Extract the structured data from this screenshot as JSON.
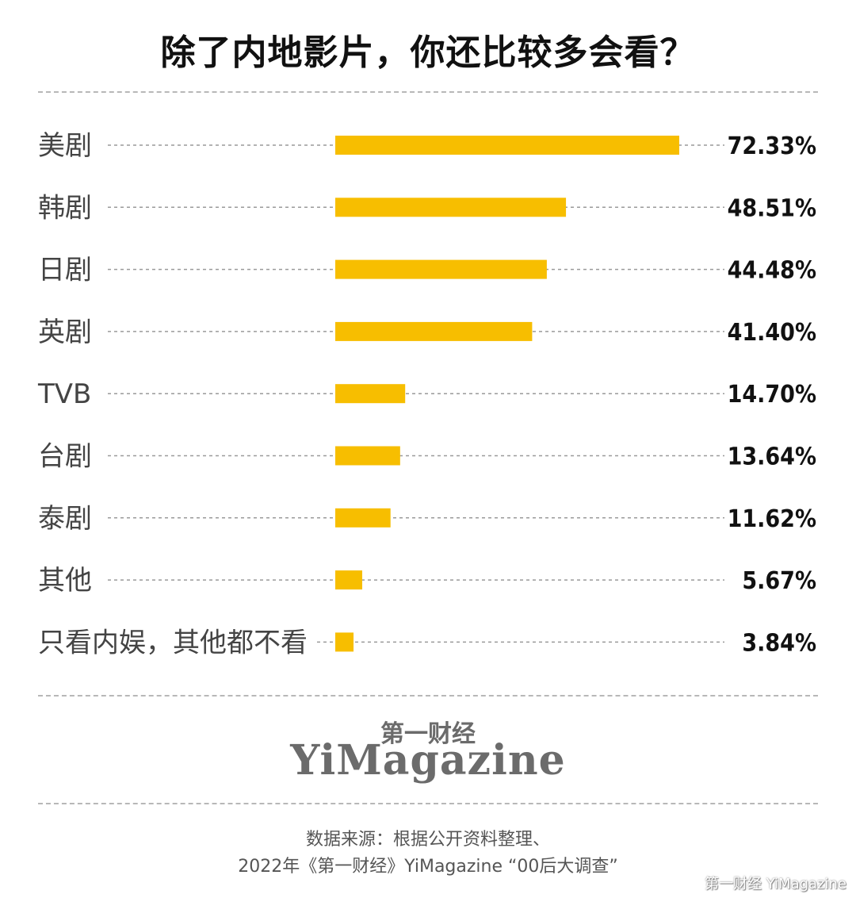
{
  "title": "除了内地影片，你还比较多会看？",
  "chart_data": {
    "type": "bar",
    "orientation": "horizontal",
    "categories": [
      "美剧",
      "韩剧",
      "日剧",
      "英剧",
      "TVB",
      "台剧",
      "泰剧",
      "其他",
      "只看内娱，其他都不看"
    ],
    "values": [
      72.33,
      48.51,
      44.48,
      41.4,
      14.7,
      13.64,
      11.62,
      5.67,
      3.84
    ],
    "value_labels": [
      "72.33%",
      "48.51%",
      "44.48%",
      "41.40%",
      "14.70%",
      "13.64%",
      "11.62%",
      "5.67%",
      "3.84%"
    ],
    "unit": "%",
    "xlim": [
      0,
      100
    ],
    "bar_color": "#F7BE00",
    "grid": "dashed guide lines per row",
    "legend": "none"
  },
  "logo": {
    "cn": "第一财经",
    "en": "YiMagazine"
  },
  "source": {
    "line1": "数据来源：根据公开资料整理、",
    "line2": "2022年《第一财经》YiMagazine “00后大调查”"
  },
  "watermark": "第一财经 YiMagazine"
}
